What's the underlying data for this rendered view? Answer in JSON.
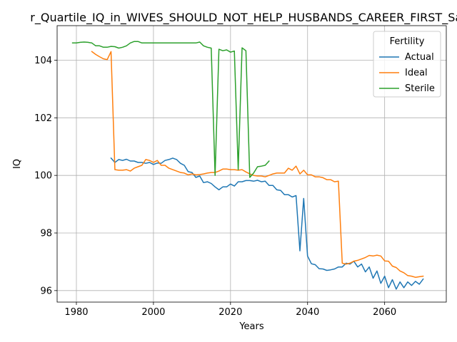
{
  "chart_data": {
    "type": "line",
    "title": "r_Quartile_IQ_in_WIVES_SHOULD_NOT_HELP_HUSBANDS_CAREER_FIRST_Sam",
    "xlabel": "Years",
    "ylabel": "IQ",
    "xlim": [
      1975,
      2076
    ],
    "ylim": [
      95.6,
      105.2
    ],
    "xticks": [
      1980,
      2000,
      2020,
      2040,
      2060
    ],
    "yticks": [
      96,
      98,
      100,
      102,
      104
    ],
    "grid": true,
    "legend": {
      "title": "Fertility",
      "placement": "top-right"
    },
    "series": [
      {
        "name": "Actual",
        "color": "#1f77b4",
        "x": [
          1989,
          1990,
          1991,
          1992,
          1993,
          1994,
          1995,
          1996,
          1997,
          1998,
          1999,
          2000,
          2001,
          2002,
          2003,
          2004,
          2005,
          2006,
          2007,
          2008,
          2009,
          2010,
          2011,
          2012,
          2013,
          2014,
          2015,
          2016,
          2017,
          2018,
          2019,
          2020,
          2021,
          2022,
          2023,
          2024,
          2025,
          2026,
          2027,
          2028,
          2029,
          2030,
          2031,
          2032,
          2033,
          2034,
          2035,
          2036,
          2037,
          2038,
          2039,
          2040,
          2041,
          2042,
          2043,
          2044,
          2045,
          2046,
          2047,
          2048,
          2049,
          2050,
          2051,
          2052,
          2053,
          2054,
          2055,
          2056,
          2057,
          2058,
          2059,
          2060,
          2061,
          2062,
          2063,
          2064,
          2065,
          2066,
          2067,
          2068,
          2069,
          2070
        ],
        "y": [
          100.6,
          100.45,
          100.55,
          100.52,
          100.56,
          100.5,
          100.5,
          100.45,
          100.45,
          100.42,
          100.45,
          100.38,
          100.43,
          100.42,
          100.52,
          100.55,
          100.6,
          100.55,
          100.42,
          100.35,
          100.13,
          100.1,
          99.93,
          99.98,
          99.75,
          99.78,
          99.72,
          99.6,
          99.5,
          99.6,
          99.6,
          99.7,
          99.63,
          99.78,
          99.78,
          99.82,
          99.82,
          99.8,
          99.83,
          99.78,
          99.8,
          99.65,
          99.65,
          99.5,
          99.48,
          99.33,
          99.33,
          99.25,
          99.3,
          97.38,
          99.2,
          97.2,
          96.93,
          96.9,
          96.76,
          96.75,
          96.7,
          96.72,
          96.75,
          96.82,
          96.82,
          96.95,
          96.92,
          97.02,
          96.82,
          96.92,
          96.65,
          96.82,
          96.43,
          96.68,
          96.25,
          96.5,
          96.1,
          96.38,
          96.05,
          96.3,
          96.1,
          96.3,
          96.18,
          96.32,
          96.22,
          96.4
        ]
      },
      {
        "name": "Ideal",
        "color": "#ff7f0e",
        "x": [
          1984,
          1985,
          1986,
          1987,
          1988,
          1989,
          1990,
          1991,
          1992,
          1993,
          1994,
          1995,
          1996,
          1997,
          1998,
          1999,
          2000,
          2001,
          2002,
          2003,
          2004,
          2005,
          2006,
          2007,
          2008,
          2009,
          2010,
          2011,
          2012,
          2013,
          2014,
          2015,
          2016,
          2017,
          2018,
          2019,
          2020,
          2021,
          2022,
          2023,
          2024,
          2025,
          2026,
          2027,
          2028,
          2029,
          2030,
          2031,
          2032,
          2033,
          2034,
          2035,
          2036,
          2037,
          2038,
          2039,
          2040,
          2041,
          2042,
          2043,
          2044,
          2045,
          2046,
          2047,
          2048,
          2049,
          2050,
          2051,
          2052,
          2053,
          2054,
          2055,
          2056,
          2057,
          2058,
          2059,
          2060,
          2061,
          2062,
          2063,
          2064,
          2065,
          2066,
          2067,
          2068,
          2069,
          2070
        ],
        "y": [
          104.3,
          104.2,
          104.12,
          104.05,
          104.02,
          104.3,
          100.2,
          100.18,
          100.18,
          100.2,
          100.15,
          100.25,
          100.3,
          100.35,
          100.55,
          100.52,
          100.45,
          100.52,
          100.35,
          100.35,
          100.25,
          100.2,
          100.15,
          100.1,
          100.08,
          100.02,
          100.05,
          100.02,
          100.03,
          100.05,
          100.08,
          100.1,
          100.1,
          100.15,
          100.22,
          100.22,
          100.2,
          100.2,
          100.18,
          100.2,
          100.12,
          100.05,
          100.0,
          99.98,
          99.98,
          99.95,
          100.0,
          100.05,
          100.08,
          100.08,
          100.08,
          100.25,
          100.18,
          100.32,
          100.05,
          100.18,
          100.02,
          100.02,
          99.95,
          99.95,
          99.92,
          99.85,
          99.85,
          99.78,
          99.8,
          96.95,
          96.92,
          96.95,
          97.02,
          97.05,
          97.1,
          97.15,
          97.22,
          97.2,
          97.23,
          97.2,
          97.03,
          97.02,
          96.85,
          96.8,
          96.68,
          96.62,
          96.52,
          96.5,
          96.46,
          96.48,
          96.5
        ]
      },
      {
        "name": "Sterile",
        "color": "#2ca02c",
        "x": [
          1979,
          1980,
          1981,
          1982,
          1983,
          1984,
          1985,
          1986,
          1987,
          1988,
          1989,
          1990,
          1991,
          1992,
          1993,
          1994,
          1995,
          1996,
          1997,
          1998,
          1999,
          2000,
          2001,
          2002,
          2003,
          2004,
          2005,
          2006,
          2007,
          2008,
          2009,
          2010,
          2011,
          2012,
          2013,
          2014,
          2015,
          2016,
          2017,
          2018,
          2019,
          2020,
          2021,
          2022,
          2023,
          2024,
          2025,
          2026,
          2027,
          2028,
          2029,
          2030
        ],
        "y": [
          104.6,
          104.6,
          104.62,
          104.63,
          104.62,
          104.6,
          104.5,
          104.5,
          104.45,
          104.45,
          104.48,
          104.47,
          104.42,
          104.45,
          104.5,
          104.6,
          104.65,
          104.65,
          104.6,
          104.6,
          104.6,
          104.6,
          104.6,
          104.6,
          104.6,
          104.6,
          104.6,
          104.6,
          104.6,
          104.6,
          104.6,
          104.6,
          104.6,
          104.63,
          104.5,
          104.45,
          104.42,
          100.0,
          104.38,
          104.33,
          104.36,
          104.28,
          104.32,
          100.2,
          104.43,
          104.33,
          99.93,
          100.08,
          100.3,
          100.32,
          100.35,
          100.5
        ]
      }
    ]
  }
}
